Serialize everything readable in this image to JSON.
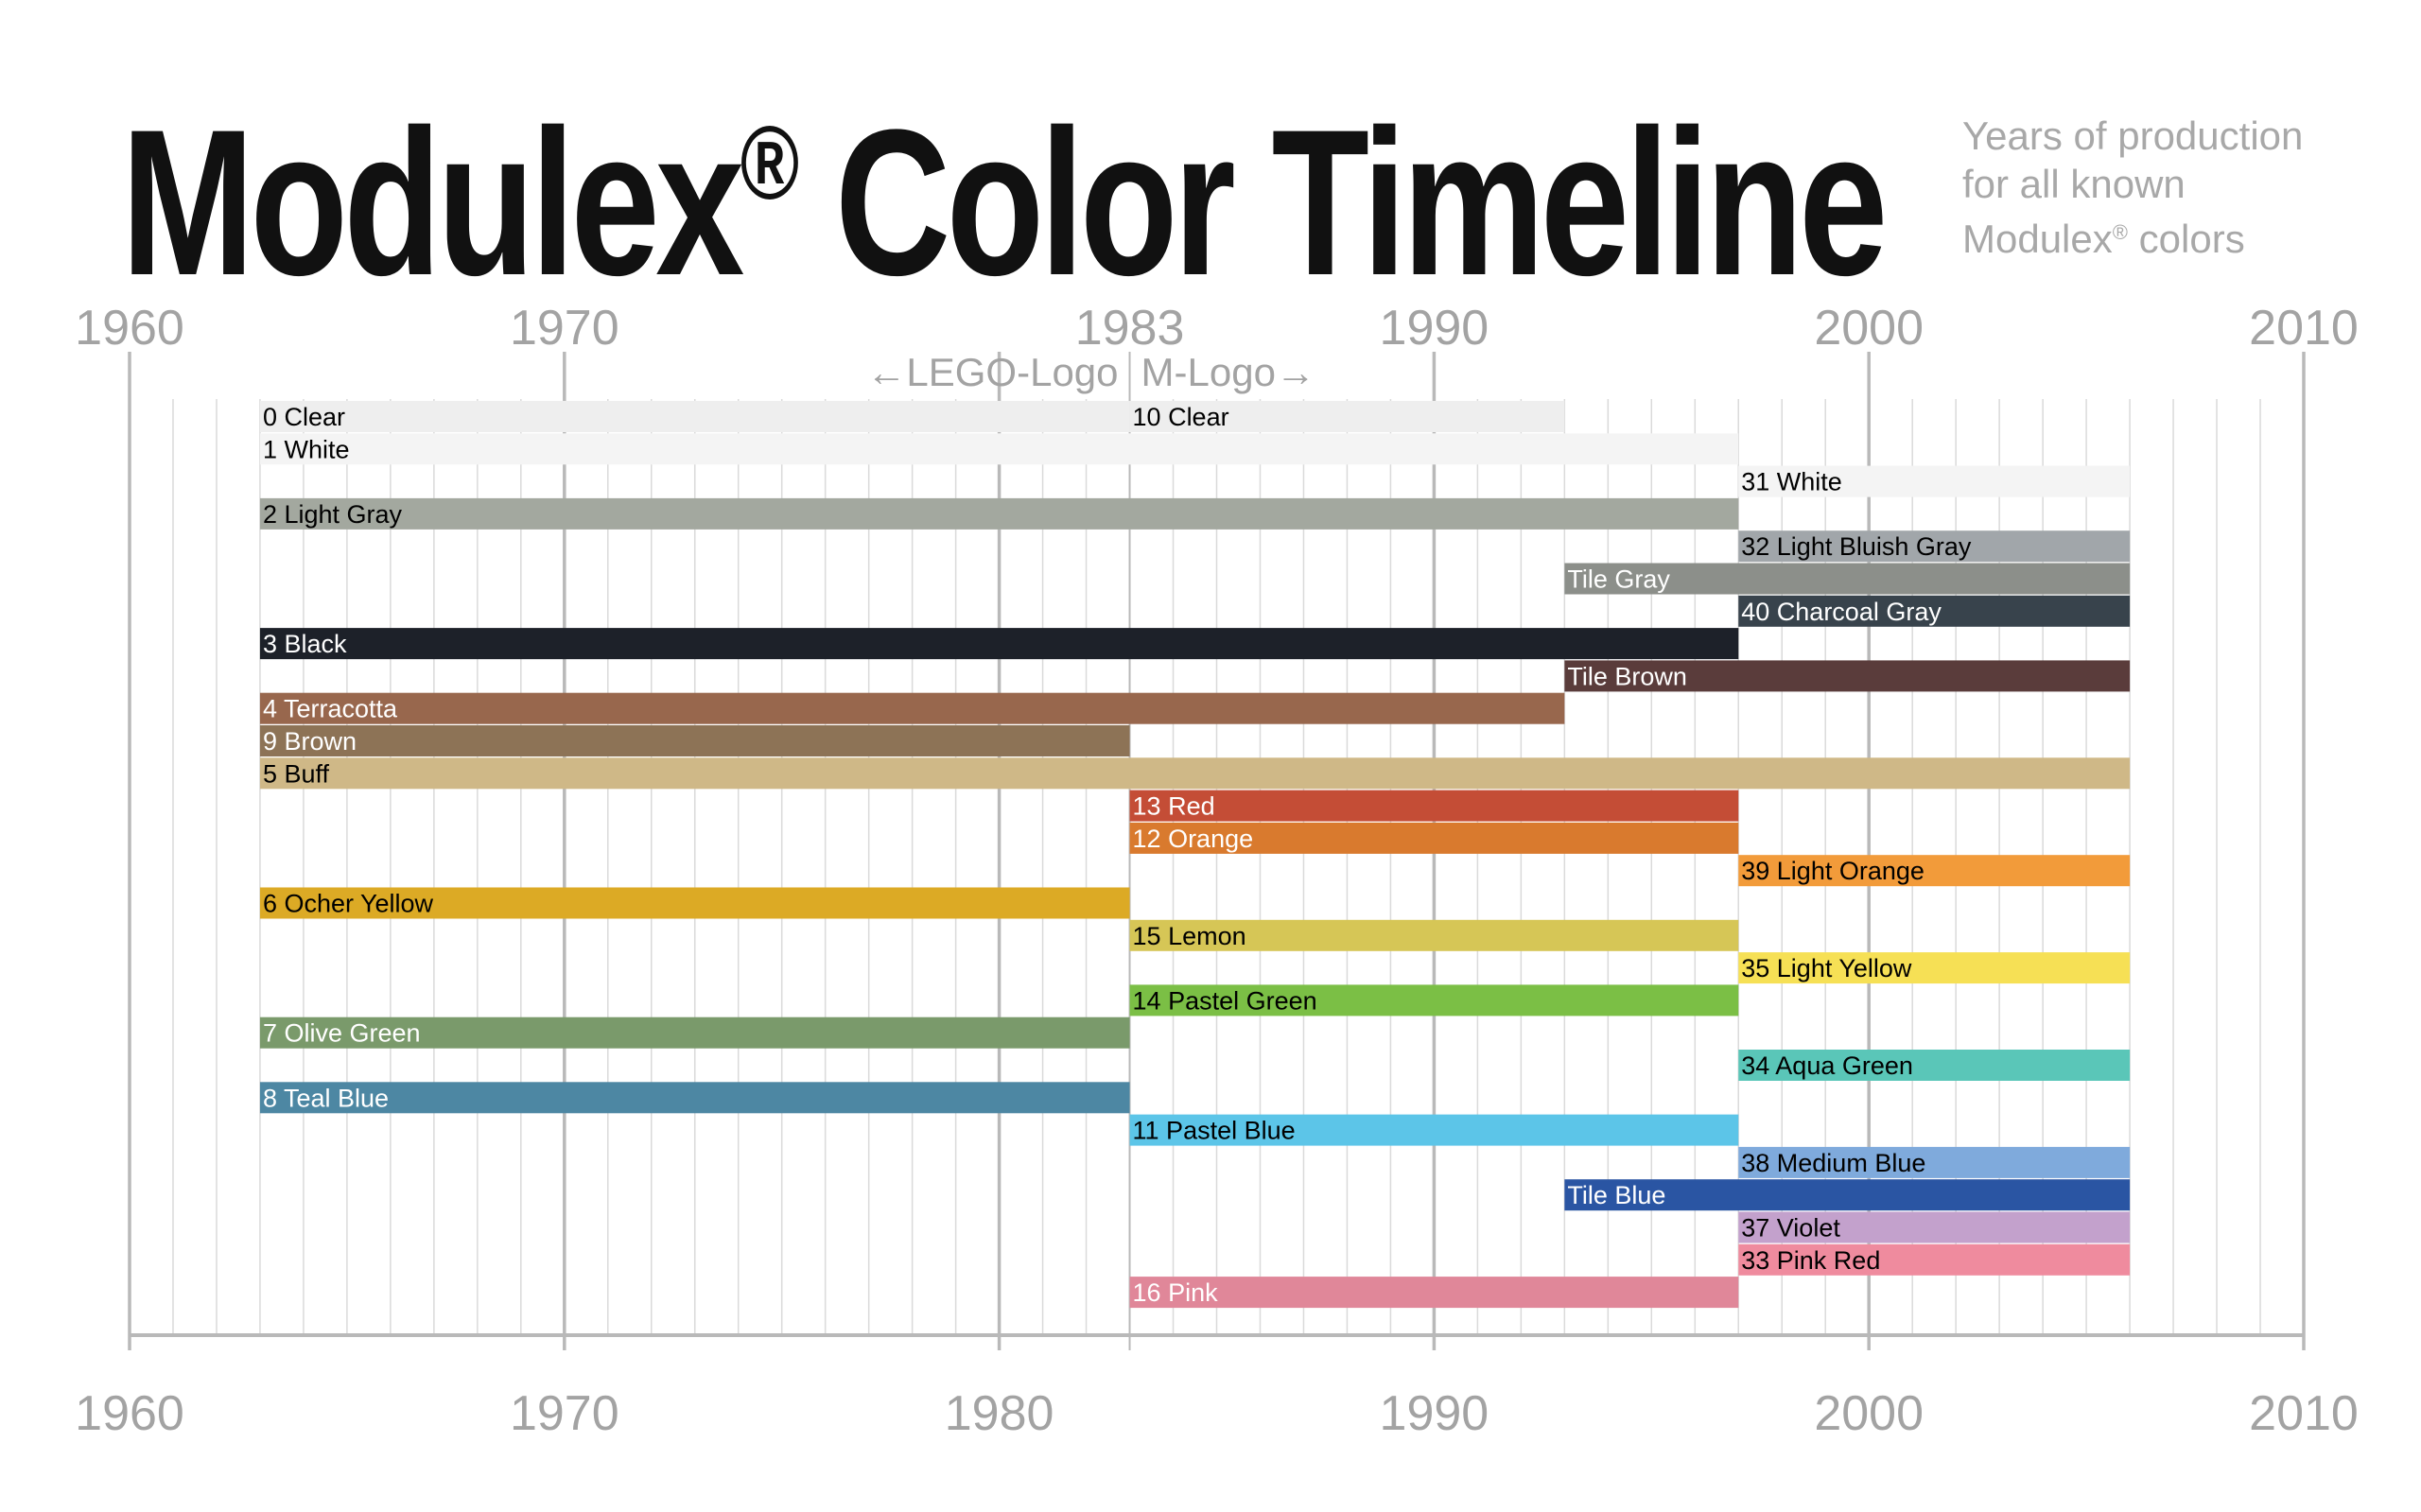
{
  "title": {
    "main": "Modulex",
    "mark": "®",
    "rest": " Color Timeline"
  },
  "subtitle": {
    "line1": "Years of production",
    "line2": "for all known",
    "line3_prefix": "Modulex",
    "line3_mark": "®",
    "line3_suffix": " colors"
  },
  "chart_data": {
    "type": "bar",
    "orientation": "horizontal-range",
    "title": "Modulex® Color Timeline",
    "subtitle": "Years of production for all known Modulex® colors",
    "xlim": [
      1960,
      2010
    ],
    "x_ticks_top": [
      1960,
      1970,
      1983,
      1990,
      2000,
      2010
    ],
    "x_ticks_bottom": [
      1960,
      1970,
      1980,
      1990,
      2000,
      2010
    ],
    "grid": true,
    "annotations": [
      {
        "text": "←LEGO-Logo",
        "year": 1983,
        "side": "left"
      },
      {
        "text": "M-Logo→",
        "year": 1983,
        "side": "right"
      }
    ],
    "series": [
      {
        "label": "0 Clear",
        "segments": [
          [
            1963,
            1983
          ]
        ],
        "color": "#eeeeee",
        "text_color": "#000000",
        "row": 0
      },
      {
        "label": "10 Clear",
        "segments": [
          [
            1983,
            1993
          ]
        ],
        "color": "#eeeeee",
        "text_color": "#000000",
        "row": 0
      },
      {
        "label": "1 White",
        "segments": [
          [
            1963,
            1997
          ]
        ],
        "color": "#f4f4f4",
        "text_color": "#000000",
        "row": 1
      },
      {
        "label": "31 White",
        "segments": [
          [
            1997,
            2006
          ]
        ],
        "color": "#f4f4f4",
        "text_color": "#000000",
        "row": 2
      },
      {
        "label": "2 Light Gray",
        "segments": [
          [
            1963,
            1997
          ]
        ],
        "color": "#a3a89f",
        "text_color": "#000000",
        "row": 3
      },
      {
        "label": "32 Light Bluish Gray",
        "segments": [
          [
            1997,
            2006
          ]
        ],
        "color": "#a1a6aa",
        "text_color": "#000000",
        "row": 4
      },
      {
        "label": "Tile Gray",
        "segments": [
          [
            1993,
            2006
          ]
        ],
        "color": "#8c8f8a",
        "text_color": "#ffffff",
        "row": 5
      },
      {
        "label": "40 Charcoal Gray",
        "segments": [
          [
            1997,
            2006
          ]
        ],
        "color": "#38434c",
        "text_color": "#ffffff",
        "row": 6
      },
      {
        "label": "3 Black",
        "segments": [
          [
            1963,
            1997
          ]
        ],
        "color": "#1d2129",
        "text_color": "#ffffff",
        "row": 7
      },
      {
        "label": "Tile Brown",
        "segments": [
          [
            1993,
            2006
          ]
        ],
        "color": "#5a3c3b",
        "text_color": "#ffffff",
        "row": 8
      },
      {
        "label": "4 Terracotta",
        "segments": [
          [
            1963,
            1993
          ]
        ],
        "color": "#98674d",
        "text_color": "#ffffff",
        "row": 9
      },
      {
        "label": "9 Brown",
        "segments": [
          [
            1963,
            1983
          ]
        ],
        "color": "#8d7356",
        "text_color": "#ffffff",
        "row": 10
      },
      {
        "label": "5 Buff",
        "segments": [
          [
            1963,
            2006
          ]
        ],
        "color": "#cfb887",
        "text_color": "#000000",
        "row": 11
      },
      {
        "label": "13 Red",
        "segments": [
          [
            1983,
            1997
          ]
        ],
        "color": "#c44d36",
        "text_color": "#ffffff",
        "row": 12
      },
      {
        "label": "12 Orange",
        "segments": [
          [
            1983,
            1997
          ]
        ],
        "color": "#d97a2e",
        "text_color": "#ffffff",
        "row": 13
      },
      {
        "label": "39 Light Orange",
        "segments": [
          [
            1997,
            2006
          ]
        ],
        "color": "#f29b3a",
        "text_color": "#000000",
        "row": 14
      },
      {
        "label": "6 Ocher Yellow",
        "segments": [
          [
            1963,
            1983
          ]
        ],
        "color": "#dcaa25",
        "text_color": "#000000",
        "row": 15
      },
      {
        "label": "15 Lemon",
        "segments": [
          [
            1983,
            1997
          ]
        ],
        "color": "#d6c656",
        "text_color": "#000000",
        "row": 16
      },
      {
        "label": "35 Light Yellow",
        "segments": [
          [
            1997,
            2006
          ]
        ],
        "color": "#f6e055",
        "text_color": "#000000",
        "row": 17
      },
      {
        "label": "14 Pastel Green",
        "segments": [
          [
            1983,
            1997
          ]
        ],
        "color": "#7bbf45",
        "text_color": "#000000",
        "row": 18
      },
      {
        "label": "7 Olive Green",
        "segments": [
          [
            1963,
            1983
          ]
        ],
        "color": "#7a9a6b",
        "text_color": "#ffffff",
        "row": 19
      },
      {
        "label": "34 Aqua Green",
        "segments": [
          [
            1997,
            2006
          ]
        ],
        "color": "#5ac6b8",
        "text_color": "#000000",
        "row": 20
      },
      {
        "label": "8 Teal Blue",
        "segments": [
          [
            1963,
            1983
          ]
        ],
        "color": "#4d87a3",
        "text_color": "#ffffff",
        "row": 21
      },
      {
        "label": "11 Pastel Blue",
        "segments": [
          [
            1983,
            1997
          ]
        ],
        "color": "#5cc5e8",
        "text_color": "#000000",
        "row": 22
      },
      {
        "label": "38 Medium Blue",
        "segments": [
          [
            1997,
            2006
          ]
        ],
        "color": "#7faadc",
        "text_color": "#000000",
        "row": 23
      },
      {
        "label": "Tile Blue",
        "segments": [
          [
            1993,
            2006
          ]
        ],
        "color": "#2a55a3",
        "text_color": "#ffffff",
        "row": 24
      },
      {
        "label": "37 Violet",
        "segments": [
          [
            1997,
            2006
          ]
        ],
        "color": "#c3a1cc",
        "text_color": "#000000",
        "row": 25
      },
      {
        "label": "33 Pink Red",
        "segments": [
          [
            1997,
            2006
          ]
        ],
        "color": "#ef8b9e",
        "text_color": "#000000",
        "row": 26
      },
      {
        "label": "16 Pink",
        "segments": [
          [
            1983,
            1997
          ]
        ],
        "color": "#e08799",
        "text_color": "#ffffff",
        "row": 27
      }
    ]
  }
}
